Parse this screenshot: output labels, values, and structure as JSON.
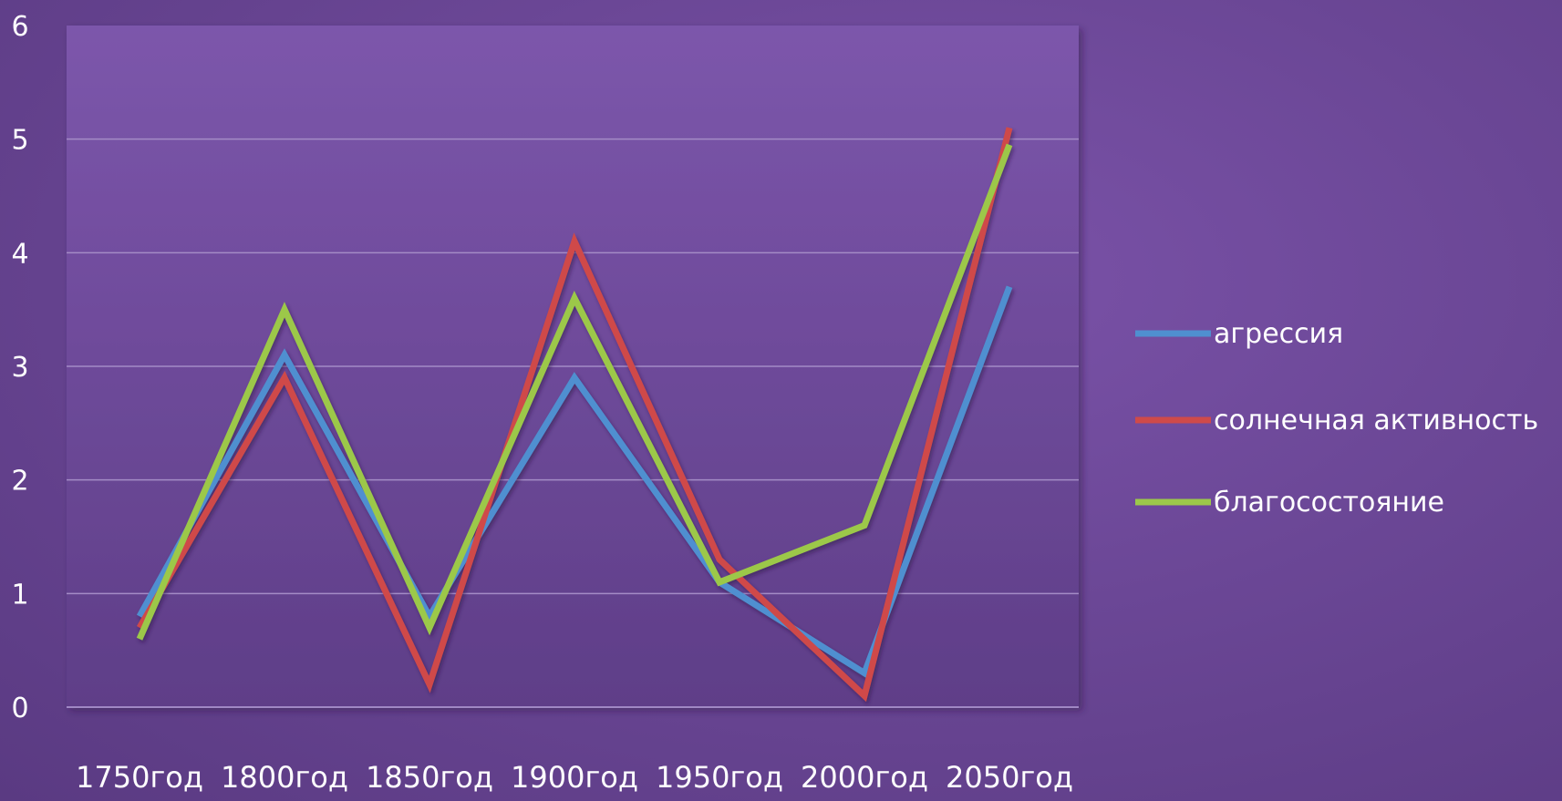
{
  "chart_data": {
    "type": "line",
    "categories": [
      "1750год",
      "1800год",
      "1850год",
      "1900год",
      "1950год",
      "2000год",
      "2050год"
    ],
    "ylim": [
      0,
      6
    ],
    "yticks": [
      0,
      1,
      2,
      3,
      4,
      5,
      6
    ],
    "grid": true,
    "legend_position": "right",
    "plot_background": "#7d55ab",
    "series": [
      {
        "name": "агрессия",
        "color": "#4f8fd0",
        "values": [
          0.8,
          3.1,
          0.8,
          2.9,
          1.1,
          0.3,
          3.7
        ]
      },
      {
        "name": "солнечная активность",
        "color": "#cf4a4a",
        "values": [
          0.7,
          2.9,
          0.2,
          4.1,
          1.3,
          0.1,
          5.1
        ]
      },
      {
        "name": "благосостояние",
        "color": "#9cc84a",
        "values": [
          0.6,
          3.5,
          0.7,
          3.6,
          1.1,
          1.6,
          4.95
        ]
      }
    ]
  }
}
